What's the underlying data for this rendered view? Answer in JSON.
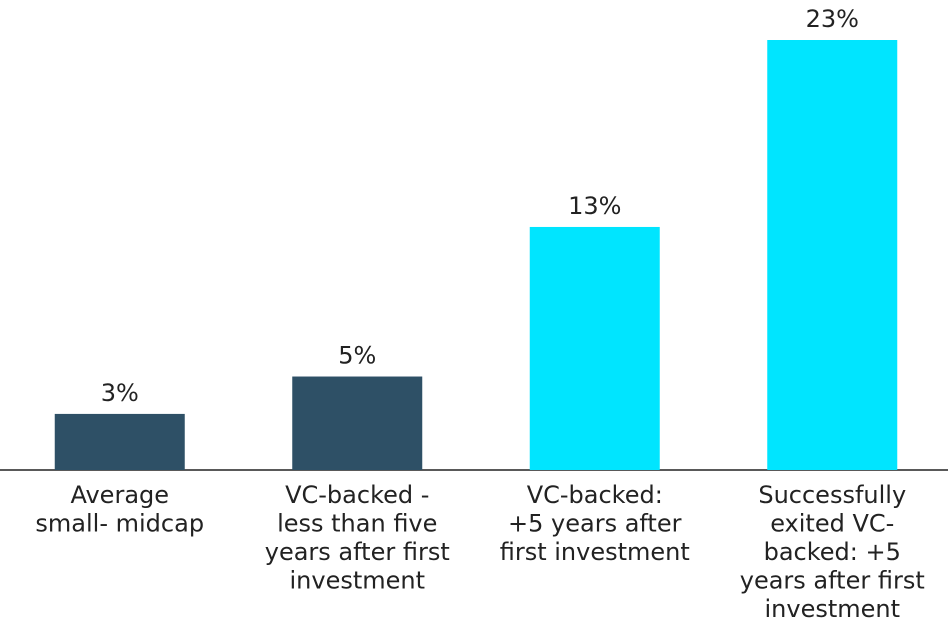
{
  "chart_data": {
    "type": "bar",
    "categories": [
      "Average\nsmall- midcap",
      "VC-backed -\nless than five\nyears after first\ninvestment",
      "VC-backed:\n+5 years after\nfirst investment",
      "Successfully\nexited VC-\nbacked: +5\nyears after first\ninvestment"
    ],
    "values": [
      3,
      5,
      13,
      23
    ],
    "value_labels": [
      "3%",
      "5%",
      "13%",
      "23%"
    ],
    "colors": [
      "#2e5066",
      "#2e5066",
      "#00e5ff",
      "#00e5ff"
    ],
    "ylim": [
      0,
      23
    ]
  }
}
